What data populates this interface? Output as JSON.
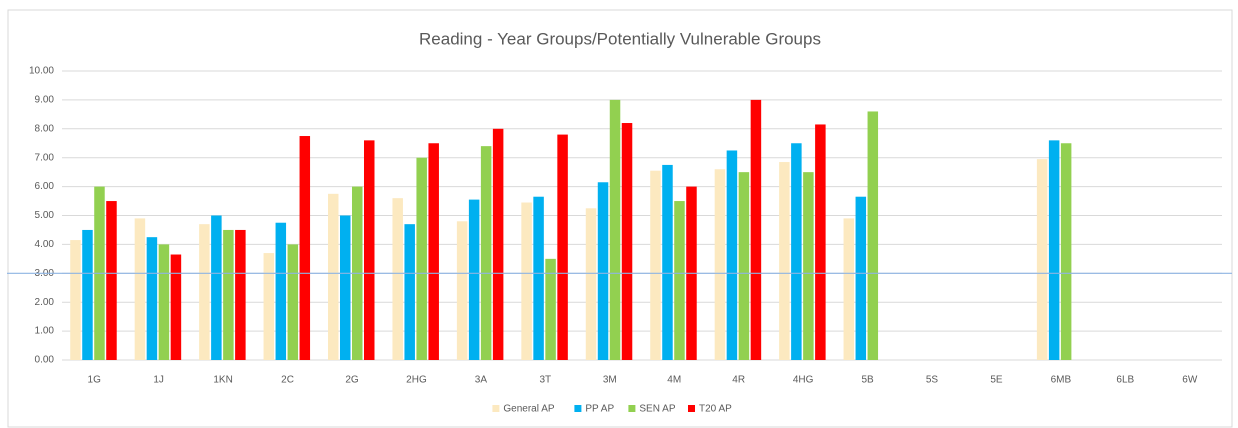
{
  "chart_data": {
    "type": "bar",
    "title": "Reading - Year Groups/Potentially Vulnerable Groups",
    "categories": [
      "1G",
      "1J",
      "1KN",
      "2C",
      "2G",
      "2HG",
      "3A",
      "3T",
      "3M",
      "4M",
      "4R",
      "4HG",
      "5B",
      "5S",
      "5E",
      "6MB",
      "6LB",
      "6W"
    ],
    "series": [
      {
        "name": "General AP",
        "color": "#fce9c0",
        "values": [
          4.15,
          4.9,
          4.7,
          3.7,
          5.75,
          5.6,
          4.8,
          5.45,
          5.25,
          6.55,
          6.6,
          6.85,
          4.9,
          null,
          null,
          6.95,
          null,
          null
        ]
      },
      {
        "name": "PP AP",
        "color": "#00b0f0",
        "values": [
          4.5,
          4.25,
          5.0,
          4.75,
          5.0,
          4.7,
          5.55,
          5.65,
          6.15,
          6.75,
          7.25,
          7.5,
          5.65,
          null,
          null,
          7.6,
          null,
          null
        ]
      },
      {
        "name": "SEN AP",
        "color": "#92d050",
        "values": [
          6.0,
          4.0,
          4.5,
          4.0,
          6.0,
          7.0,
          7.4,
          3.5,
          9.0,
          5.5,
          6.5,
          6.5,
          8.6,
          null,
          null,
          7.5,
          null,
          null
        ]
      },
      {
        "name": "T20 AP",
        "color": "#ff0000",
        "values": [
          5.5,
          3.65,
          4.5,
          7.75,
          7.6,
          7.5,
          8.0,
          7.8,
          8.2,
          6.0,
          9.0,
          8.15,
          null,
          null,
          null,
          null,
          null,
          null
        ]
      }
    ],
    "ylim": [
      0,
      10
    ],
    "yticks": [
      {
        "value": 0,
        "label": "0.00"
      },
      {
        "value": 1,
        "label": "1.00"
      },
      {
        "value": 2,
        "label": "2.00"
      },
      {
        "value": 3,
        "label": "3.00"
      },
      {
        "value": 4,
        "label": "4.00"
      },
      {
        "value": 5,
        "label": "5.00"
      },
      {
        "value": 6,
        "label": "6.00"
      },
      {
        "value": 7,
        "label": "7.00"
      },
      {
        "value": 8,
        "label": "8.00"
      },
      {
        "value": 9,
        "label": "9.00"
      },
      {
        "value": 10,
        "label": "10.00"
      }
    ],
    "grid": true,
    "reference_line": {
      "value": 3,
      "color": "#8eb4e3"
    },
    "legend": "bottom"
  }
}
